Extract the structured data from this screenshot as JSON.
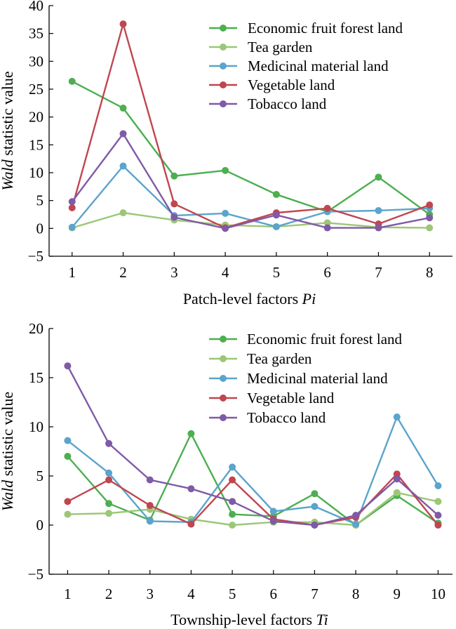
{
  "chart_data": [
    {
      "type": "line",
      "title": "",
      "xlabel_prefix": "Patch-level factors ",
      "xlabel_italic": "Pi",
      "ylabel_italic": "Wald",
      "ylabel_rest": " statistic value",
      "x": [
        1,
        2,
        3,
        4,
        5,
        6,
        7,
        8
      ],
      "ylim": [
        -5,
        40
      ],
      "yticks": [
        "40",
        "35",
        "30",
        "25",
        "20",
        "15",
        "10",
        "5",
        "0",
        "−5"
      ],
      "ytick_values": [
        40,
        35,
        30,
        25,
        20,
        15,
        10,
        5,
        0,
        -5
      ],
      "legend_position": "top-right",
      "series": [
        {
          "name": "Economic fruit forest land",
          "color": "#4caf50",
          "values": [
            26.4,
            21.6,
            9.4,
            10.4,
            6.1,
            3.0,
            9.2,
            2.5
          ]
        },
        {
          "name": "Tea garden",
          "color": "#9bc776",
          "values": [
            0.1,
            2.8,
            1.5,
            0.6,
            0.3,
            1.0,
            0.2,
            0.1
          ]
        },
        {
          "name": "Medicinal material land",
          "color": "#5ba4cc",
          "values": [
            0.2,
            11.2,
            2.3,
            2.7,
            0.3,
            3.0,
            3.2,
            3.6
          ]
        },
        {
          "name": "Vegetable land",
          "color": "#c0464f",
          "values": [
            3.7,
            36.7,
            4.4,
            0.1,
            2.8,
            3.6,
            0.8,
            4.2
          ]
        },
        {
          "name": "Tobacco land",
          "color": "#7f5aa6",
          "values": [
            4.8,
            17.0,
            2.0,
            0.0,
            2.4,
            0.1,
            0.1,
            1.9
          ]
        }
      ]
    },
    {
      "type": "line",
      "title": "",
      "xlabel_prefix": "Township-level factors ",
      "xlabel_italic": "Ti",
      "ylabel_italic": "Wald",
      "ylabel_rest": " statistic value",
      "x": [
        1,
        2,
        3,
        4,
        5,
        6,
        7,
        8,
        9,
        10
      ],
      "ylim": [
        -5,
        20
      ],
      "yticks": [
        "20",
        "15",
        "10",
        "5",
        "0",
        "−5"
      ],
      "ytick_values": [
        20,
        15,
        10,
        5,
        0,
        -5
      ],
      "legend_position": "top-right",
      "series": [
        {
          "name": "Economic fruit forest land",
          "color": "#4caf50",
          "values": [
            7.0,
            2.2,
            0.5,
            9.3,
            1.1,
            0.9,
            3.2,
            0.0,
            3.0,
            0.2
          ]
        },
        {
          "name": "Tea garden",
          "color": "#9bc776",
          "values": [
            1.1,
            1.2,
            1.6,
            0.6,
            0.0,
            0.3,
            0.3,
            0.0,
            3.3,
            2.4
          ]
        },
        {
          "name": "Medicinal material land",
          "color": "#5ba4cc",
          "values": [
            8.6,
            5.3,
            0.4,
            0.3,
            5.9,
            1.4,
            1.9,
            0.1,
            11.0,
            4.0
          ]
        },
        {
          "name": "Vegetable land",
          "color": "#c0464f",
          "values": [
            2.4,
            4.6,
            2.0,
            0.1,
            4.6,
            0.6,
            0.0,
            0.8,
            5.2,
            0.0
          ]
        },
        {
          "name": "Tobacco land",
          "color": "#7f5aa6",
          "values": [
            16.2,
            8.3,
            4.6,
            3.7,
            2.4,
            0.4,
            0.0,
            1.0,
            4.7,
            1.0
          ]
        }
      ]
    }
  ]
}
